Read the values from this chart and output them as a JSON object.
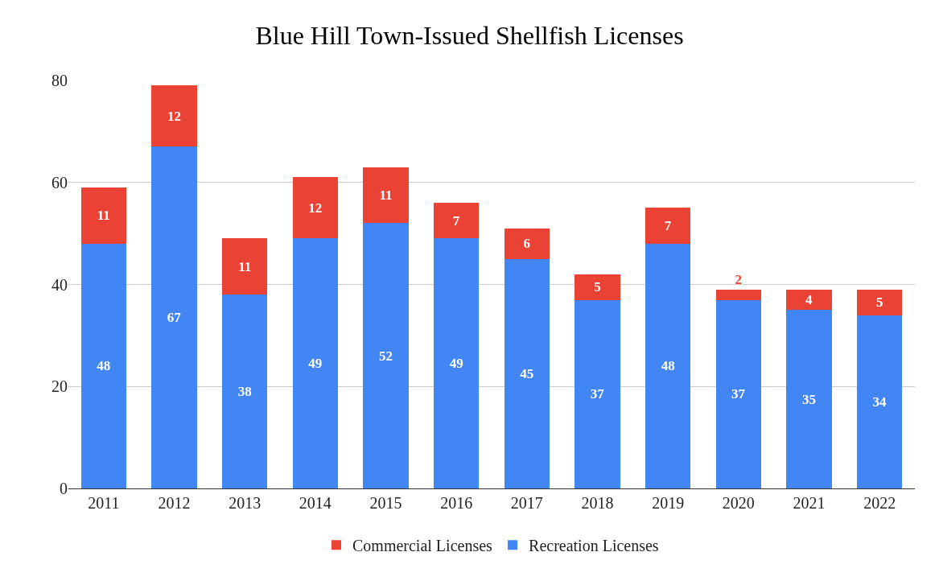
{
  "chart_data": {
    "type": "bar",
    "title": "Blue Hill Town-Issued Shellfish Licenses",
    "categories": [
      "2011",
      "2012",
      "2013",
      "2014",
      "2015",
      "2016",
      "2017",
      "2018",
      "2019",
      "2020",
      "2021",
      "2022"
    ],
    "series": [
      {
        "name": "Recreation Licenses",
        "color": "#4285f4",
        "values": [
          48,
          67,
          38,
          49,
          52,
          49,
          45,
          37,
          48,
          37,
          35,
          34
        ]
      },
      {
        "name": "Commercial Licenses",
        "color": "#ea4335",
        "values": [
          11,
          12,
          11,
          12,
          11,
          7,
          6,
          5,
          7,
          2,
          4,
          5
        ]
      }
    ],
    "stacked": true,
    "ylim": [
      0,
      80
    ],
    "yticks": [
      0,
      20,
      40,
      60,
      80
    ],
    "grid": "y",
    "legend": "bottom",
    "data_labels": true
  }
}
